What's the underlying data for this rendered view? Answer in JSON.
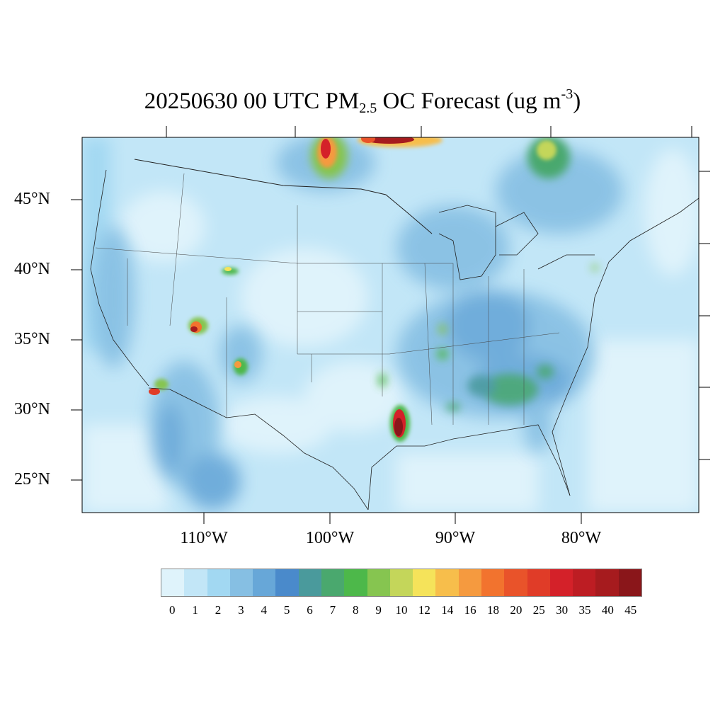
{
  "title": {
    "prefix": "20250630 00 UTC PM",
    "subscript": "2.5",
    "middle": " OC Forecast (ug m",
    "superscript": "-3",
    "suffix": ")"
  },
  "latitude_labels": [
    "45°N",
    "40°N",
    "35°N",
    "30°N",
    "25°N"
  ],
  "longitude_labels": [
    "110°W",
    "100°W",
    "90°W",
    "80°W"
  ],
  "colorbar": {
    "labels": [
      "0",
      "1",
      "2",
      "3",
      "4",
      "5",
      "6",
      "7",
      "8",
      "9",
      "10",
      "12",
      "14",
      "16",
      "18",
      "20",
      "25",
      "30",
      "35",
      "40",
      "45"
    ],
    "colors": [
      "#dff3fb",
      "#c2e6f7",
      "#a2d8f2",
      "#86bfe3",
      "#67a7d8",
      "#4a8acb",
      "#4a9a9c",
      "#4aa86e",
      "#4db84a",
      "#86c550",
      "#c4d65a",
      "#f5e35a",
      "#f7be4b",
      "#f59a3f",
      "#f2732e",
      "#e9532a",
      "#e03c28",
      "#d42129",
      "#bd1d23",
      "#a61b1e",
      "#8a161a"
    ]
  },
  "hotspots": [
    {
      "name": "southern-canada-west",
      "value": 30
    },
    {
      "name": "southern-canada-central",
      "value": 40
    },
    {
      "name": "quebec",
      "value": 10
    },
    {
      "name": "wyoming",
      "value": 12
    },
    {
      "name": "utah",
      "value": 40
    },
    {
      "name": "arizona",
      "value": 20
    },
    {
      "name": "mexico-border",
      "value": 25
    },
    {
      "name": "louisiana",
      "value": 45
    },
    {
      "name": "arkansas",
      "value": 9
    },
    {
      "name": "georgia",
      "value": 8
    }
  ]
}
